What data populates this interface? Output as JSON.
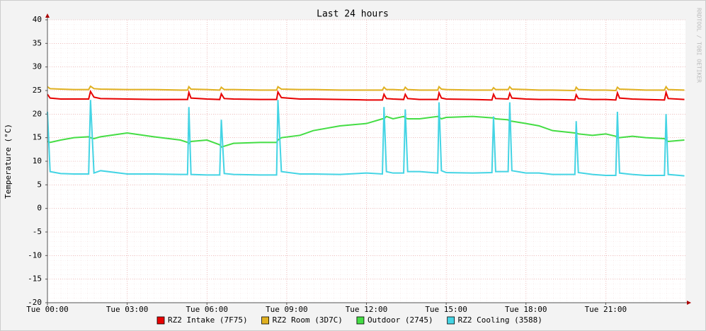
{
  "chart_data": {
    "type": "line",
    "title": "Last 24 hours",
    "y_label": "Temperature (°C)",
    "watermark": "RRDTOOL / TOBI OETIKER",
    "x": [
      0,
      0.1,
      0.5,
      1,
      1.55,
      1.62,
      1.75,
      2,
      3,
      4,
      5,
      5.27,
      5.32,
      5.4,
      6,
      6.48,
      6.54,
      6.65,
      7,
      8,
      8.62,
      8.67,
      8.8,
      9.5,
      10,
      11,
      12,
      12.6,
      12.66,
      12.75,
      13,
      13.4,
      13.46,
      13.55,
      14,
      14.68,
      14.73,
      14.82,
      15,
      16,
      16.72,
      16.78,
      16.86,
      17.33,
      17.39,
      17.47,
      18,
      18.5,
      19,
      19.84,
      19.89,
      19.97,
      20.5,
      21,
      21.38,
      21.44,
      21.52,
      22,
      22.5,
      23.21,
      23.27,
      23.35,
      23.96
    ],
    "xlim": [
      0,
      24
    ],
    "xticks": [
      {
        "value": 0,
        "label": "Tue 00:00"
      },
      {
        "value": 3,
        "label": "Tue 03:00"
      },
      {
        "value": 6,
        "label": "Tue 06:00"
      },
      {
        "value": 9,
        "label": "Tue 09:00"
      },
      {
        "value": 12,
        "label": "Tue 12:00"
      },
      {
        "value": 15,
        "label": "Tue 15:00"
      },
      {
        "value": 18,
        "label": "Tue 18:00"
      },
      {
        "value": 21,
        "label": "Tue 21:00"
      }
    ],
    "ylim": [
      -20,
      40
    ],
    "yticks": [
      -20,
      -15,
      -10,
      -5,
      0,
      5,
      10,
      15,
      20,
      25,
      30,
      35,
      40
    ],
    "grid": true,
    "legend": "bottom",
    "series": [
      {
        "name": "RZ2 Intake (7F75)",
        "color": "#e80000",
        "values": [
          24.2,
          23.4,
          23.2,
          23.2,
          23.2,
          24.8,
          23.6,
          23.3,
          23.2,
          23.1,
          23.1,
          23.1,
          24.6,
          23.4,
          23.2,
          23.1,
          24.3,
          23.3,
          23.2,
          23.1,
          23.1,
          24.7,
          23.5,
          23.2,
          23.2,
          23.1,
          23.0,
          23.0,
          24.2,
          23.3,
          23.2,
          23.1,
          24.2,
          23.3,
          23.1,
          23.1,
          24.5,
          23.4,
          23.2,
          23.1,
          23.0,
          24.2,
          23.3,
          23.2,
          24.4,
          23.4,
          23.2,
          23.1,
          23.1,
          23.0,
          24.1,
          23.3,
          23.1,
          23.1,
          23.0,
          24.5,
          23.4,
          23.2,
          23.1,
          23.0,
          24.6,
          23.3,
          23.1
        ]
      },
      {
        "name": "RZ2 Room (3D7C)",
        "color": "#e0b020",
        "values": [
          25.8,
          25.4,
          25.3,
          25.2,
          25.2,
          25.9,
          25.4,
          25.3,
          25.2,
          25.2,
          25.1,
          25.1,
          25.8,
          25.3,
          25.2,
          25.1,
          25.7,
          25.2,
          25.2,
          25.1,
          25.1,
          25.8,
          25.3,
          25.2,
          25.2,
          25.1,
          25.1,
          25.1,
          25.7,
          25.2,
          25.2,
          25.1,
          25.7,
          25.2,
          25.1,
          25.1,
          25.8,
          25.3,
          25.2,
          25.1,
          25.1,
          25.6,
          25.2,
          25.2,
          25.8,
          25.3,
          25.2,
          25.1,
          25.1,
          25.0,
          25.7,
          25.2,
          25.1,
          25.1,
          25.0,
          25.7,
          25.3,
          25.2,
          25.1,
          25.1,
          25.8,
          25.2,
          25.1
        ]
      },
      {
        "name": "Outdoor (2745)",
        "color": "#44dd44",
        "values": [
          14.2,
          14.0,
          14.5,
          15.0,
          15.2,
          15.0,
          14.8,
          15.2,
          16.0,
          15.2,
          14.5,
          14.0,
          13.8,
          14.2,
          14.5,
          13.5,
          13.0,
          13.2,
          13.8,
          14.0,
          14.0,
          14.5,
          15.0,
          15.5,
          16.5,
          17.5,
          18.0,
          19.0,
          19.0,
          19.5,
          19.0,
          19.5,
          19.2,
          19.0,
          19.0,
          19.5,
          19.3,
          19.0,
          19.3,
          19.5,
          19.2,
          19.2,
          19.0,
          18.8,
          18.5,
          18.5,
          18.0,
          17.5,
          16.5,
          16.0,
          16.0,
          15.8,
          15.5,
          15.8,
          15.3,
          15.0,
          15.0,
          15.3,
          15.0,
          14.8,
          14.5,
          14.2,
          14.5
        ]
      },
      {
        "name": "RZ2 Cooling (3588)",
        "color": "#44d4e4",
        "values": [
          20.5,
          7.8,
          7.4,
          7.3,
          7.3,
          23.0,
          7.5,
          8.0,
          7.3,
          7.3,
          7.2,
          7.2,
          21.5,
          7.2,
          7.1,
          7.1,
          18.8,
          7.4,
          7.2,
          7.1,
          7.1,
          23.0,
          7.8,
          7.3,
          7.3,
          7.2,
          7.5,
          7.3,
          21.5,
          7.8,
          7.5,
          7.5,
          21.0,
          7.8,
          7.8,
          7.5,
          22.5,
          8.0,
          7.6,
          7.5,
          7.6,
          19.5,
          7.8,
          7.8,
          22.5,
          8.0,
          7.5,
          7.5,
          7.2,
          7.2,
          18.5,
          7.6,
          7.2,
          7.0,
          7.0,
          20.5,
          7.5,
          7.2,
          7.0,
          7.0,
          20.0,
          7.2,
          6.9
        ]
      }
    ]
  }
}
